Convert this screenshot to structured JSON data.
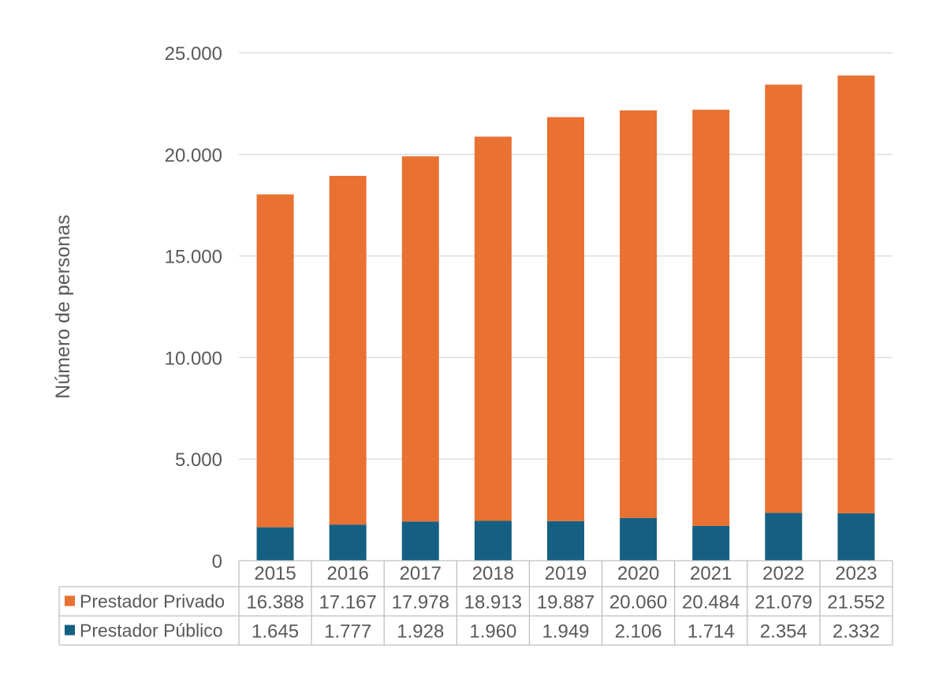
{
  "chart_data": {
    "type": "bar",
    "stacked": true,
    "categories": [
      "2015",
      "2016",
      "2017",
      "2018",
      "2019",
      "2020",
      "2021",
      "2022",
      "2023"
    ],
    "series": [
      {
        "name": "Prestador Privado",
        "color": "#E97132",
        "values": [
          16388,
          17167,
          17978,
          18913,
          19887,
          20060,
          20484,
          21079,
          21552
        ],
        "labels": [
          "16.388",
          "17.167",
          "17.978",
          "18.913",
          "19.887",
          "20.060",
          "20.484",
          "21.079",
          "21.552"
        ]
      },
      {
        "name": "Prestador Público",
        "color": "#156082",
        "values": [
          1645,
          1777,
          1928,
          1960,
          1949,
          2106,
          1714,
          2354,
          2332
        ],
        "labels": [
          "1.645",
          "1.777",
          "1.928",
          "1.960",
          "1.949",
          "2.106",
          "1.714",
          "2.354",
          "2.332"
        ]
      }
    ],
    "ylabel": "Número de personas",
    "ylim": [
      0,
      25000
    ],
    "yticks": [
      0,
      5000,
      10000,
      15000,
      20000,
      25000
    ],
    "ytick_labels": [
      "0",
      "5.000",
      "10.000",
      "15.000",
      "20.000",
      "25.000"
    ],
    "grid": true,
    "legend": "data-table-left"
  }
}
